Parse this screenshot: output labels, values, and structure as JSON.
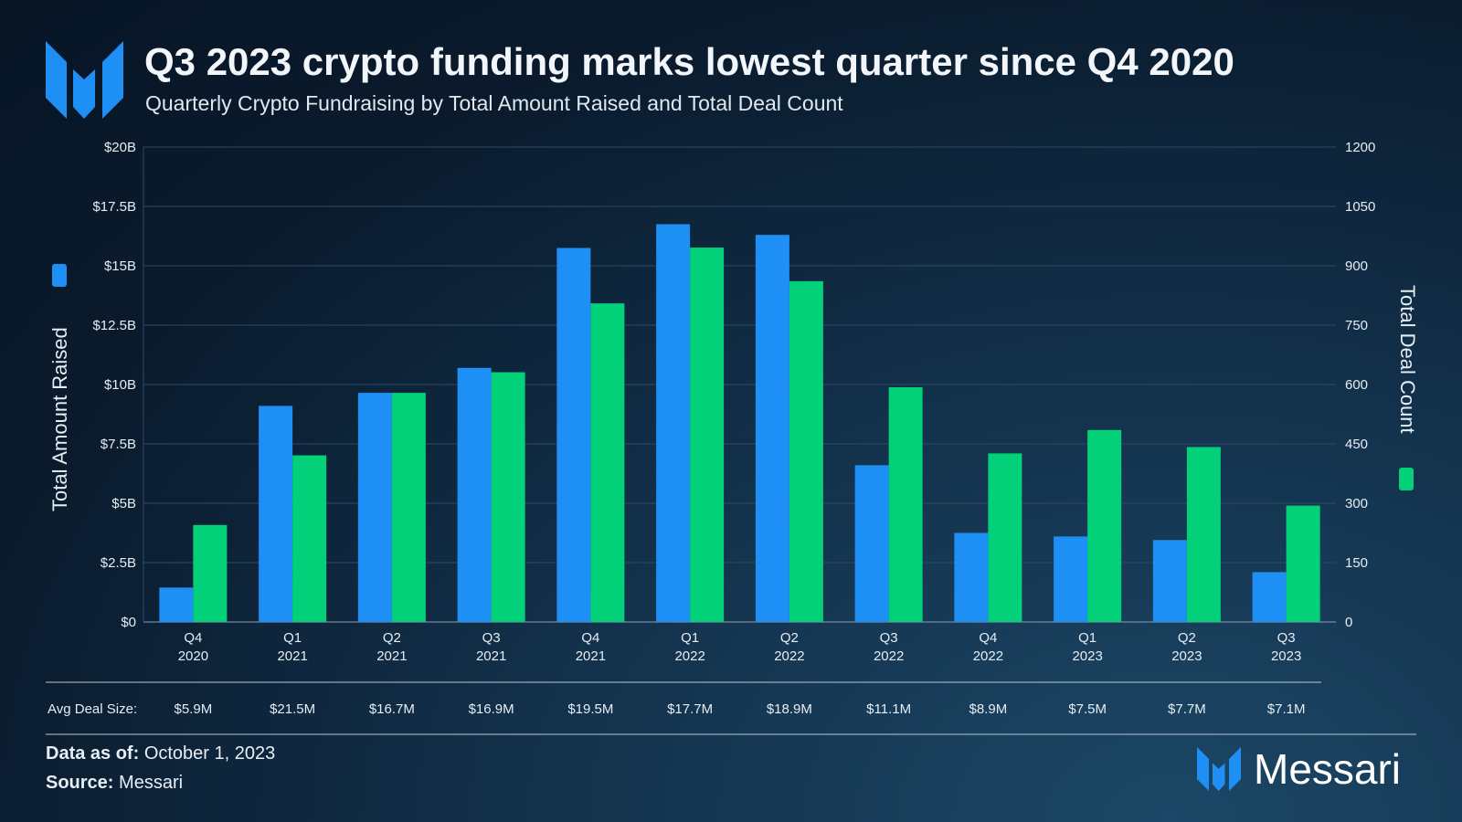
{
  "title": "Q3 2023 crypto funding marks lowest quarter since Q4 2020",
  "subtitle": "Quarterly Crypto Fundraising by Total Amount Raised and Total Deal Count",
  "footer": {
    "data_label": "Data as of:",
    "data_value": "October 1, 2023",
    "source_label": "Source:",
    "source_value": "Messari",
    "brand": "Messari"
  },
  "chart_data": {
    "type": "bar",
    "categories": [
      "Q4 2020",
      "Q1 2021",
      "Q2 2021",
      "Q3 2021",
      "Q4 2021",
      "Q1 2022",
      "Q2 2022",
      "Q3 2022",
      "Q4 2022",
      "Q1 2023",
      "Q2 2023",
      "Q3 2023"
    ],
    "category_lines": [
      [
        "Q4",
        "2020"
      ],
      [
        "Q1",
        "2021"
      ],
      [
        "Q2",
        "2021"
      ],
      [
        "Q3",
        "2021"
      ],
      [
        "Q4",
        "2021"
      ],
      [
        "Q1",
        "2022"
      ],
      [
        "Q2",
        "2022"
      ],
      [
        "Q3",
        "2022"
      ],
      [
        "Q4",
        "2022"
      ],
      [
        "Q1",
        "2023"
      ],
      [
        "Q2",
        "2023"
      ],
      [
        "Q3",
        "2023"
      ]
    ],
    "series": [
      {
        "name": "Total Amount Raised",
        "axis": "left",
        "unit": "$B",
        "color": "#1e8ff5",
        "values": [
          1.45,
          9.1,
          9.65,
          10.7,
          15.75,
          16.75,
          16.3,
          6.6,
          3.75,
          3.6,
          3.45,
          2.1
        ]
      },
      {
        "name": "Total Deal Count",
        "axis": "right",
        "color": "#03d17a",
        "values": [
          245,
          421,
          579,
          631,
          805,
          946,
          861,
          593,
          426,
          485,
          442,
          294
        ]
      }
    ],
    "ylabel": "Total Amount Raised",
    "y2label": "Total Deal Count",
    "ylim": [
      0,
      20
    ],
    "y2lim": [
      0,
      1200
    ],
    "yticks": [
      "$0",
      "$2.5B",
      "$5B",
      "$7.5B",
      "$10B",
      "$12.5B",
      "$15B",
      "$17.5B",
      "$20B"
    ],
    "y2ticks": [
      "0",
      "150",
      "300",
      "450",
      "600",
      "750",
      "900",
      "1050",
      "1200"
    ],
    "grid": true,
    "avg_deal_size_label": "Avg Deal Size:",
    "avg_deal_size": [
      "$5.9M",
      "$21.5M",
      "$16.7M",
      "$16.9M",
      "$19.5M",
      "$17.7M",
      "$18.9M",
      "$11.1M",
      "$8.9M",
      "$7.5M",
      "$7.7M",
      "$7.1M"
    ]
  }
}
